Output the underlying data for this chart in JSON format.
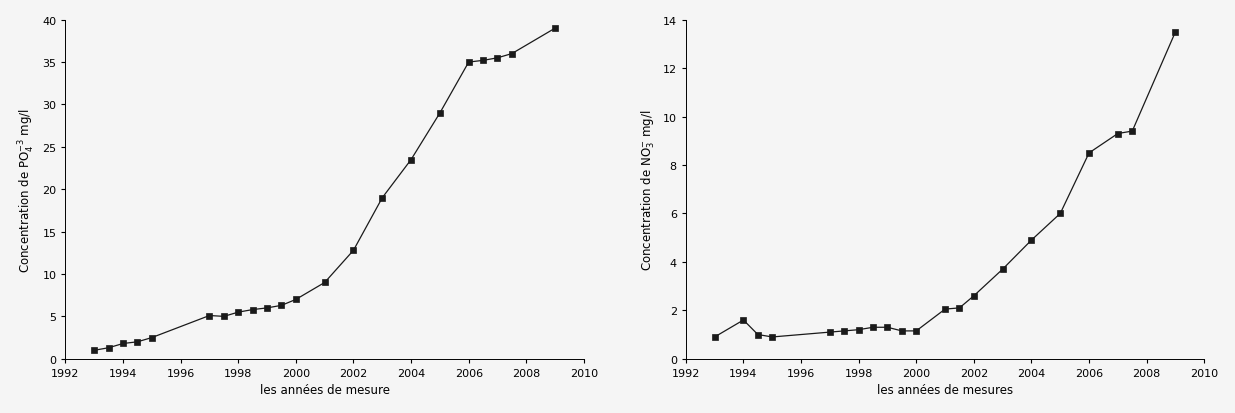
{
  "chart1": {
    "years": [
      1993,
      1993.5,
      1994,
      1994.5,
      1995,
      1997,
      1997.5,
      1998,
      1998.5,
      1999,
      1999.5,
      2000,
      2001,
      2002,
      2003,
      2004,
      2005,
      2006,
      2006.5,
      2007,
      2007.5,
      2009
    ],
    "values": [
      1.0,
      1.3,
      1.8,
      2.0,
      2.5,
      5.1,
      5.0,
      5.5,
      5.8,
      6.0,
      6.3,
      7.0,
      9.0,
      12.8,
      19.0,
      23.5,
      29.0,
      35.0,
      35.2,
      35.5,
      36.0,
      39.0
    ],
    "xlabel": "les années de mesure",
    "ylabel": "Concentration de PO$_4^{-3}$ mg/l",
    "xlim": [
      1992,
      2010
    ],
    "ylim": [
      0,
      40
    ],
    "yticks": [
      0,
      5,
      10,
      15,
      20,
      25,
      30,
      35,
      40
    ],
    "xticks": [
      1992,
      1994,
      1996,
      1998,
      2000,
      2002,
      2004,
      2006,
      2008,
      2010
    ]
  },
  "chart2": {
    "years": [
      1993,
      1994,
      1994.5,
      1995,
      1997,
      1997.5,
      1998,
      1998.5,
      1999,
      1999.5,
      2000,
      2001,
      2001.5,
      2002,
      2003,
      2004,
      2005,
      2006,
      2007,
      2007.5,
      2009
    ],
    "values": [
      0.9,
      1.6,
      1.0,
      0.9,
      1.1,
      1.15,
      1.2,
      1.3,
      1.3,
      1.15,
      1.15,
      2.05,
      2.1,
      2.6,
      3.7,
      4.9,
      6.0,
      8.5,
      9.3,
      9.4,
      13.5
    ],
    "xlabel": "les années de mesures",
    "ylabel": "Concentration de NO$_3^{-}$ mg/l",
    "xlim": [
      1992,
      2010
    ],
    "ylim": [
      0,
      14
    ],
    "yticks": [
      0,
      2,
      4,
      6,
      8,
      10,
      12,
      14
    ],
    "xticks": [
      1992,
      1994,
      1996,
      1998,
      2000,
      2002,
      2004,
      2006,
      2008,
      2010
    ]
  },
  "line_color": "#1a1a1a",
  "marker": "s",
  "markersize": 4,
  "linewidth": 0.9,
  "background_color": "#f5f5f5",
  "label_fontsize": 8.5,
  "tick_fontsize": 8
}
